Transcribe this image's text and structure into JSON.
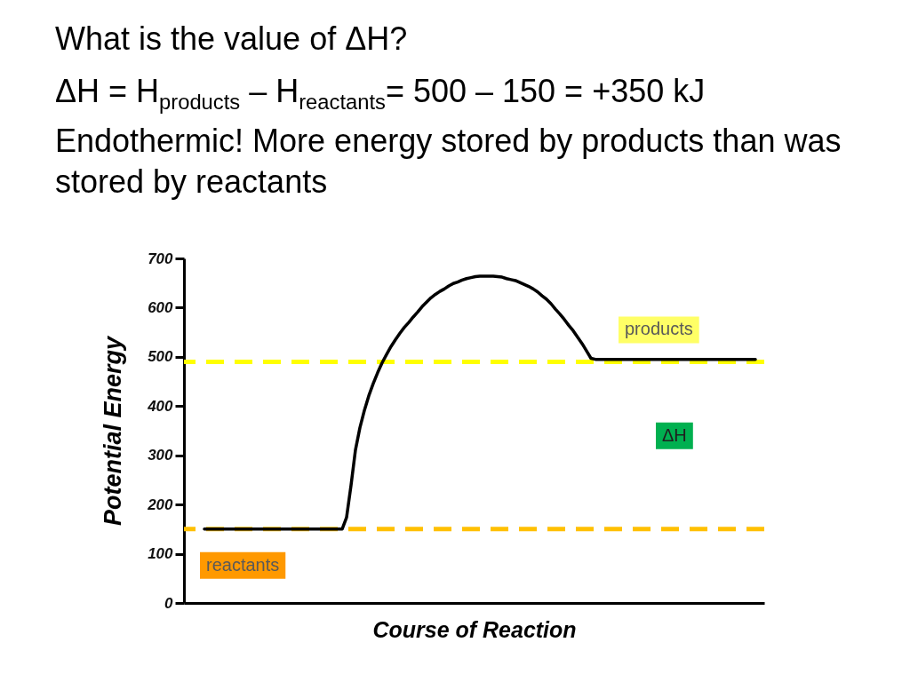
{
  "chart_data": {
    "type": "line",
    "title": "What is the value of ΔH?",
    "subtitle": "ΔH = H$_{products}$ – H$_{reactants}$= 500 – 150 = +350 kJ",
    "annotations": [
      "Endothermic! More energy stored by products than was stored by reactants",
      "ΔH"
    ],
    "xlabel": "Course of Reaction",
    "ylabel": "Potential Energy",
    "categories": [
      null,
      null,
      null,
      null,
      null,
      null,
      null,
      null,
      null,
      null,
      null,
      null,
      null,
      null,
      null,
      null,
      null,
      null,
      null,
      null,
      null,
      null,
      null,
      null,
      null,
      null,
      null,
      null,
      null,
      null,
      null,
      null,
      null,
      null,
      null,
      null,
      null,
      null,
      null,
      null,
      null,
      null,
      null,
      null,
      null,
      null,
      null,
      null,
      null,
      null,
      null,
      null,
      null,
      null,
      null,
      null,
      null,
      null,
      null,
      null,
      null,
      null,
      null,
      null,
      null,
      null,
      null,
      null,
      null,
      null,
      null,
      null,
      null,
      null,
      null,
      null,
      null,
      null,
      null,
      null,
      null,
      null,
      null,
      null,
      null,
      null,
      null,
      null,
      null,
      null,
      null,
      null,
      null,
      null,
      null,
      null,
      null,
      null,
      null,
      null,
      null,
      null,
      null,
      null,
      null,
      null,
      null,
      null,
      null,
      null,
      null,
      null,
      null,
      null,
      null,
      null,
      null,
      null,
      null,
      null,
      null,
      null,
      null,
      null,
      null
    ],
    "series": [
      {
        "color": "#000000",
        "values": [
          150,
          150,
          150,
          150,
          150,
          150,
          150,
          150,
          150,
          150,
          150,
          150,
          150,
          150,
          150,
          150,
          150,
          150,
          150,
          150,
          150,
          150,
          150,
          150,
          150,
          150,
          150,
          150,
          150,
          150,
          150,
          150,
          174,
          239,
          311,
          356,
          391,
          421,
          446,
          468,
          488,
          505,
          521,
          535,
          548,
          560,
          570,
          581,
          591,
          602,
          611,
          620,
          627,
          633,
          638,
          644,
          649,
          652,
          656,
          659,
          661,
          663,
          664,
          664,
          664,
          664,
          663,
          662,
          659,
          657,
          655,
          651,
          647,
          643,
          638,
          632,
          624,
          617,
          608,
          597,
          587,
          576,
          564,
          553,
          540,
          527,
          512,
          497,
          495,
          495,
          495,
          495,
          495,
          495,
          495,
          495,
          495,
          495,
          495,
          495,
          495,
          495,
          495,
          495,
          495,
          495,
          495,
          495,
          495,
          495,
          495,
          495,
          495,
          495,
          495,
          495,
          495,
          495,
          495,
          495,
          495,
          495,
          495,
          495,
          495
        ]
      }
    ],
    "ylim": [
      0,
      700
    ],
    "yticks": [
      0,
      100,
      200,
      300,
      400,
      500,
      600,
      700
    ],
    "tick_labels": "y",
    "grid": false,
    "marker": "none",
    "line_style": "solid",
    "ref_lines": [
      {
        "axis": "y",
        "value": 490,
        "label": "products",
        "color": "#ffff00",
        "line_style": "dashed"
      },
      {
        "axis": "y",
        "value": 150,
        "label": "reactants",
        "color": "#ffc000",
        "line_style": "dashed"
      }
    ]
  }
}
